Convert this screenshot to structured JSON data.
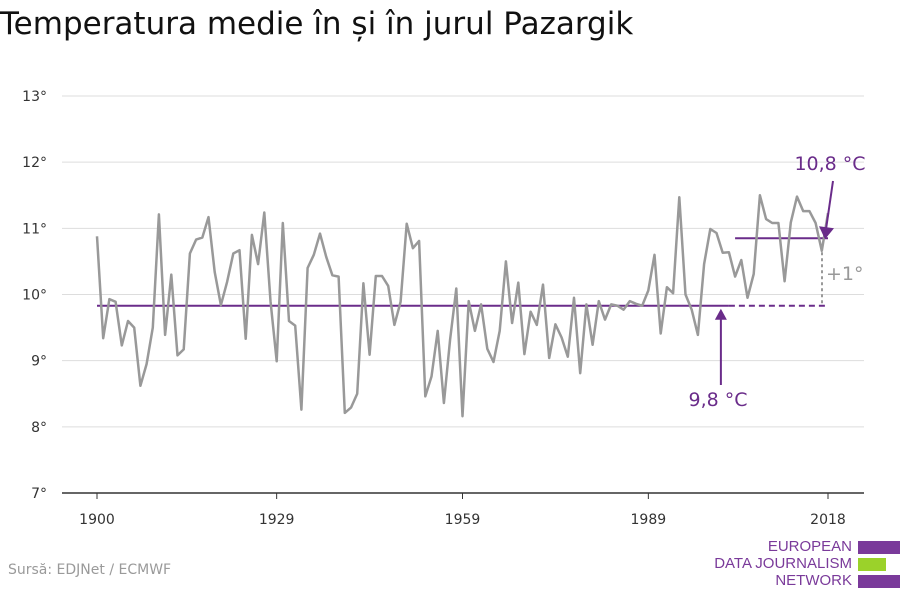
{
  "title": "Temperatura medie în și în jurul Pazargik",
  "source": "Sursă: EDJNet / ECMWF",
  "logo": {
    "lines": [
      "EUROPEAN",
      "DATA JOURNALISM",
      "NETWORK"
    ],
    "colors": [
      "#7a3a9a",
      "#9bd22a",
      "#7a3a9a"
    ]
  },
  "colors": {
    "series": "#999999",
    "average": "#6a2c8a",
    "annotation": "#6a2c8a",
    "difference": "#999999",
    "grid": "#dddddd"
  },
  "chart_data": {
    "type": "line",
    "title": "Temperatura medie în și în jurul Pazargik",
    "xlabel": "",
    "ylabel": "",
    "xlim": [
      1900,
      2018
    ],
    "ylim": [
      7,
      13
    ],
    "x_ticks": [
      1900,
      1929,
      1959,
      1989,
      2018
    ],
    "x_tick_labels": [
      "1900",
      "1929",
      "1959",
      "1989",
      "2018"
    ],
    "y_ticks": [
      7,
      8,
      9,
      10,
      11,
      12,
      13
    ],
    "y_tick_labels": [
      "7°",
      "8°",
      "9°",
      "10°",
      "11°",
      "12°",
      "13°"
    ],
    "grid": true,
    "x": [
      1900,
      1901,
      1902,
      1903,
      1904,
      1905,
      1906,
      1907,
      1908,
      1909,
      1910,
      1911,
      1912,
      1913,
      1914,
      1915,
      1916,
      1917,
      1918,
      1919,
      1920,
      1921,
      1922,
      1923,
      1924,
      1925,
      1926,
      1927,
      1928,
      1929,
      1930,
      1931,
      1932,
      1933,
      1934,
      1935,
      1936,
      1937,
      1938,
      1939,
      1940,
      1941,
      1942,
      1943,
      1944,
      1945,
      1946,
      1947,
      1948,
      1949,
      1950,
      1951,
      1952,
      1953,
      1954,
      1955,
      1956,
      1957,
      1958,
      1959,
      1960,
      1961,
      1962,
      1963,
      1964,
      1965,
      1966,
      1967,
      1968,
      1969,
      1970,
      1971,
      1972,
      1973,
      1974,
      1975,
      1976,
      1977,
      1978,
      1979,
      1980,
      1981,
      1982,
      1983,
      1984,
      1985,
      1986,
      1987,
      1988,
      1989,
      1990,
      1991,
      1992,
      1993,
      1994,
      1995,
      1996,
      1997,
      1998,
      1999,
      2000,
      2001,
      2002,
      2003,
      2004,
      2005,
      2006,
      2007,
      2008,
      2009,
      2010,
      2011,
      2012,
      2013,
      2014,
      2015,
      2016,
      2017,
      2018
    ],
    "series": [
      {
        "values": [
          10.88,
          9.34,
          9.93,
          9.89,
          9.23,
          9.6,
          9.5,
          8.62,
          8.95,
          9.5,
          11.21,
          9.39,
          10.3,
          9.08,
          9.17,
          10.62,
          10.83,
          10.86,
          11.17,
          10.34,
          9.84,
          10.19,
          10.62,
          10.67,
          9.33,
          10.9,
          10.46,
          11.24,
          9.9,
          8.99,
          11.08,
          9.6,
          9.53,
          8.26,
          10.4,
          10.6,
          10.92,
          10.57,
          10.29,
          10.27,
          8.21,
          8.29,
          8.5,
          10.17,
          9.09,
          10.28,
          10.28,
          10.13,
          9.54,
          9.89,
          11.07,
          10.7,
          10.81,
          8.46,
          8.76,
          9.45,
          8.36,
          9.32,
          10.09,
          8.16,
          9.9,
          9.45,
          9.85,
          9.18,
          8.98,
          9.45,
          10.5,
          9.57,
          10.18,
          9.1,
          9.74,
          9.54,
          10.15,
          9.04,
          9.55,
          9.35,
          9.06,
          9.95,
          8.81,
          9.85,
          9.24,
          9.9,
          9.62,
          9.85,
          9.83,
          9.77,
          9.9,
          9.86,
          9.83,
          10.06,
          10.6,
          9.41,
          10.11,
          10.02,
          11.47,
          10.0,
          9.77,
          9.39,
          10.46,
          10.99,
          10.93,
          10.63,
          10.64,
          10.27,
          10.52,
          9.95,
          10.31,
          11.5,
          11.14,
          11.08,
          11.08,
          10.2,
          11.09,
          11.48,
          11.26,
          11.26,
          11.08,
          10.66,
          11.23
        ]
      }
    ],
    "reference_lines": [
      {
        "label": "9,8 °C",
        "value": 9.83,
        "from": 1900,
        "to": 2018,
        "solid_to": 2002
      },
      {
        "label": "10,8 °C",
        "value": 10.85,
        "from": 2003,
        "to": 2018
      }
    ],
    "annotations": {
      "high_label": "10,8 °C",
      "low_label": "9,8 °C",
      "difference_label": "+1°"
    }
  }
}
